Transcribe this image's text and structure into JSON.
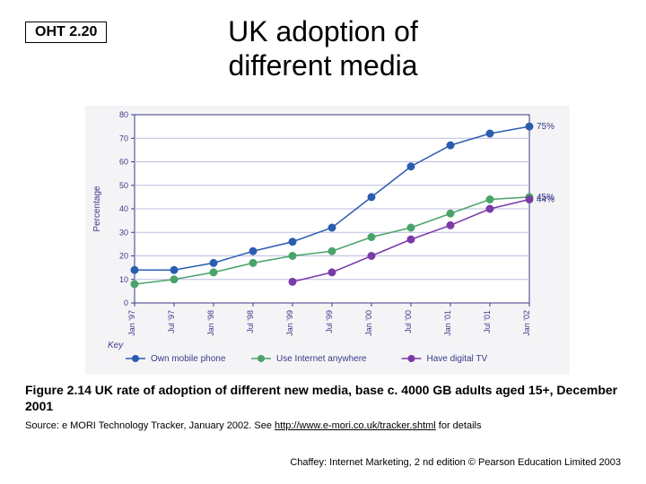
{
  "oht_label": "OHT 2.20",
  "title_line1": "UK adoption of",
  "title_line2": "different media",
  "caption": "Figure 2.14 UK rate of adoption of different new media, base c. 4000 GB adults aged 15+, December 2001",
  "source_prefix": "Source: e MORI Technology Tracker, January 2002. See ",
  "source_link_text": "http://www.e-mori.co.uk/tracker.shtml",
  "source_suffix": " for details",
  "footer": "Chaffey: Internet Marketing, 2 nd edition © Pearson Education Limited 2003",
  "chart": {
    "type": "line",
    "background_color": "#f4f4f6",
    "plot_bg": "#ffffff",
    "axis_color": "#3a3a8a",
    "grid_color": "#bcbce0",
    "ylabel": "Percentage",
    "ylabel_fontsize": 10,
    "tick_fontsize": 9,
    "ylim": [
      0,
      80
    ],
    "ytick_step": 10,
    "x_categories": [
      "Jan '97",
      "Jul '97",
      "Jan '98",
      "Jul '98",
      "Jan '99",
      "Jul '99",
      "Jan '00",
      "Jul '00",
      "Jan '01",
      "Jul '01",
      "Jan '02"
    ],
    "series": [
      {
        "name": "Own mobile phone",
        "color": "#2a5db0",
        "marker": "circle",
        "line_width": 1.5,
        "marker_size": 4,
        "end_label": "75%",
        "values": [
          14,
          14,
          17,
          22,
          26,
          32,
          45,
          58,
          67,
          72,
          75
        ]
      },
      {
        "name": "Use Internet anywhere",
        "color": "#4aa36a",
        "marker": "circle",
        "line_width": 1.5,
        "marker_size": 4,
        "end_label": "45%",
        "values": [
          8,
          10,
          13,
          17,
          20,
          22,
          28,
          32,
          38,
          44,
          45
        ]
      },
      {
        "name": "Have digital TV",
        "color": "#7a3aa8",
        "marker": "circle",
        "line_width": 1.5,
        "marker_size": 4,
        "end_label": "44%",
        "values": [
          null,
          null,
          null,
          null,
          9,
          13,
          20,
          27,
          33,
          40,
          44
        ]
      }
    ],
    "legend_title": "Key",
    "legend_fontsize": 10,
    "end_label_fontsize": 10,
    "end_label_color": "#3a3a8a"
  }
}
